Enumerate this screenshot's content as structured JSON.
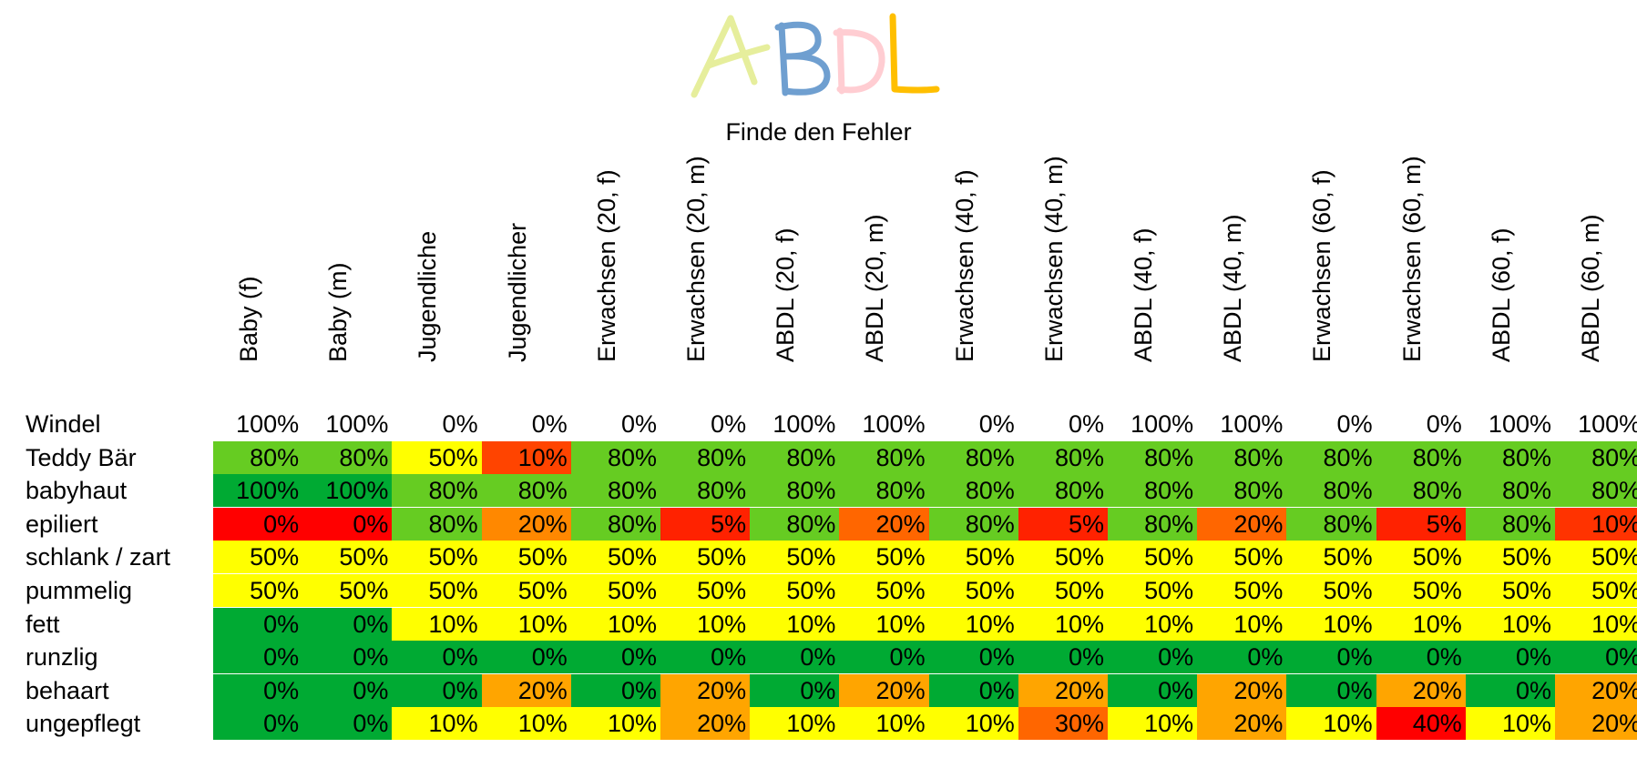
{
  "logo": {
    "text": "ABDL",
    "letters": [
      "A",
      "B",
      "D",
      "L"
    ],
    "colors": [
      "#e6ee9c",
      "#6f9fd0",
      "#ffcdd2",
      "#ffbf00"
    ]
  },
  "chart_data": {
    "type": "heatmap",
    "subtitle": "Finde den Fehler",
    "columns": [
      "Baby (f)",
      "Baby (m)",
      "Jugendliche",
      "Jugendlicher",
      "Erwachsen (20, f)",
      "Erwachsen (20, m)",
      "ABDL (20, f)",
      "ABDL (20, m)",
      "Erwachsen (40, f)",
      "Erwachsen (40, m)",
      "ABDL (40, f)",
      "ABDL (40, m)",
      "Erwachsen (60, f)",
      "Erwachsen (60, m)",
      "ABDL (60, f)",
      "ABDL (60, m)"
    ],
    "rows": [
      "Windel",
      "Teddy Bär",
      "babyhaut",
      "epiliert",
      "schlank / zart",
      "pummelig",
      "fett",
      "runzlig",
      "behaart",
      "ungepflegt"
    ],
    "values": [
      [
        "100%",
        "100%",
        "0%",
        "0%",
        "0%",
        "0%",
        "100%",
        "100%",
        "0%",
        "0%",
        "100%",
        "100%",
        "0%",
        "0%",
        "100%",
        "100%"
      ],
      [
        "80%",
        "80%",
        "50%",
        "10%",
        "80%",
        "80%",
        "80%",
        "80%",
        "80%",
        "80%",
        "80%",
        "80%",
        "80%",
        "80%",
        "80%",
        "80%"
      ],
      [
        "100%",
        "100%",
        "80%",
        "80%",
        "80%",
        "80%",
        "80%",
        "80%",
        "80%",
        "80%",
        "80%",
        "80%",
        "80%",
        "80%",
        "80%",
        "80%"
      ],
      [
        "0%",
        "0%",
        "80%",
        "20%",
        "80%",
        "5%",
        "80%",
        "20%",
        "80%",
        "5%",
        "80%",
        "20%",
        "80%",
        "5%",
        "80%",
        "10%"
      ],
      [
        "50%",
        "50%",
        "50%",
        "50%",
        "50%",
        "50%",
        "50%",
        "50%",
        "50%",
        "50%",
        "50%",
        "50%",
        "50%",
        "50%",
        "50%",
        "50%"
      ],
      [
        "50%",
        "50%",
        "50%",
        "50%",
        "50%",
        "50%",
        "50%",
        "50%",
        "50%",
        "50%",
        "50%",
        "50%",
        "50%",
        "50%",
        "50%",
        "50%"
      ],
      [
        "0%",
        "0%",
        "10%",
        "10%",
        "10%",
        "10%",
        "10%",
        "10%",
        "10%",
        "10%",
        "10%",
        "10%",
        "10%",
        "10%",
        "10%",
        "10%"
      ],
      [
        "0%",
        "0%",
        "0%",
        "0%",
        "0%",
        "0%",
        "0%",
        "0%",
        "0%",
        "0%",
        "0%",
        "0%",
        "0%",
        "0%",
        "0%",
        "0%"
      ],
      [
        "0%",
        "0%",
        "0%",
        "20%",
        "0%",
        "20%",
        "0%",
        "20%",
        "0%",
        "20%",
        "0%",
        "20%",
        "0%",
        "20%",
        "0%",
        "20%"
      ],
      [
        "0%",
        "0%",
        "10%",
        "10%",
        "10%",
        "20%",
        "10%",
        "10%",
        "10%",
        "30%",
        "10%",
        "20%",
        "10%",
        "40%",
        "10%",
        "20%"
      ]
    ],
    "cell_colors": [
      [
        "none",
        "none",
        "none",
        "none",
        "none",
        "none",
        "none",
        "none",
        "none",
        "none",
        "none",
        "none",
        "none",
        "none",
        "none",
        "none"
      ],
      [
        "#66cc22",
        "#66cc22",
        "#ffff00",
        "#ff4400",
        "#66cc22",
        "#66cc22",
        "#66cc22",
        "#66cc22",
        "#66cc22",
        "#66cc22",
        "#66cc22",
        "#66cc22",
        "#66cc22",
        "#66cc22",
        "#66cc22",
        "#66cc22"
      ],
      [
        "#00aa33",
        "#00aa33",
        "#66cc22",
        "#66cc22",
        "#66cc22",
        "#66cc22",
        "#66cc22",
        "#66cc22",
        "#66cc22",
        "#66cc22",
        "#66cc22",
        "#66cc22",
        "#66cc22",
        "#66cc22",
        "#66cc22",
        "#66cc22"
      ],
      [
        "#ff0000",
        "#ff0000",
        "#66cc22",
        "#ff8800",
        "#66cc22",
        "#ff2200",
        "#66cc22",
        "#ff6600",
        "#66cc22",
        "#ff2200",
        "#66cc22",
        "#ff6600",
        "#66cc22",
        "#ff2200",
        "#66cc22",
        "#ff3300"
      ],
      [
        "#ffff00",
        "#ffff00",
        "#ffff00",
        "#ffff00",
        "#ffff00",
        "#ffff00",
        "#ffff00",
        "#ffff00",
        "#ffff00",
        "#ffff00",
        "#ffff00",
        "#ffff00",
        "#ffff00",
        "#ffff00",
        "#ffff00",
        "#ffff00"
      ],
      [
        "#ffff00",
        "#ffff00",
        "#ffff00",
        "#ffff00",
        "#ffff00",
        "#ffff00",
        "#ffff00",
        "#ffff00",
        "#ffff00",
        "#ffff00",
        "#ffff00",
        "#ffff00",
        "#ffff00",
        "#ffff00",
        "#ffff00",
        "#ffff00"
      ],
      [
        "#00aa33",
        "#00aa33",
        "#ffff00",
        "#ffff00",
        "#ffff00",
        "#ffff00",
        "#ffff00",
        "#ffff00",
        "#ffff00",
        "#ffff00",
        "#ffff00",
        "#ffff00",
        "#ffff00",
        "#ffff00",
        "#ffff00",
        "#ffff00"
      ],
      [
        "#00aa33",
        "#00aa33",
        "#00aa33",
        "#00aa33",
        "#00aa33",
        "#00aa33",
        "#00aa33",
        "#00aa33",
        "#00aa33",
        "#00aa33",
        "#00aa33",
        "#00aa33",
        "#00aa33",
        "#00aa33",
        "#00aa33",
        "#00aa33"
      ],
      [
        "#00aa33",
        "#00aa33",
        "#00aa33",
        "#ffa500",
        "#00aa33",
        "#ffa500",
        "#00aa33",
        "#ffa500",
        "#00aa33",
        "#ffa500",
        "#00aa33",
        "#ffa500",
        "#00aa33",
        "#ffa500",
        "#00aa33",
        "#ffa500"
      ],
      [
        "#00aa33",
        "#00aa33",
        "#ffff00",
        "#ffff00",
        "#ffff00",
        "#ffa500",
        "#ffff00",
        "#ffff00",
        "#ffff00",
        "#ff6600",
        "#ffff00",
        "#ffa500",
        "#ffff00",
        "#ff0000",
        "#ffff00",
        "#ffa500"
      ]
    ]
  }
}
